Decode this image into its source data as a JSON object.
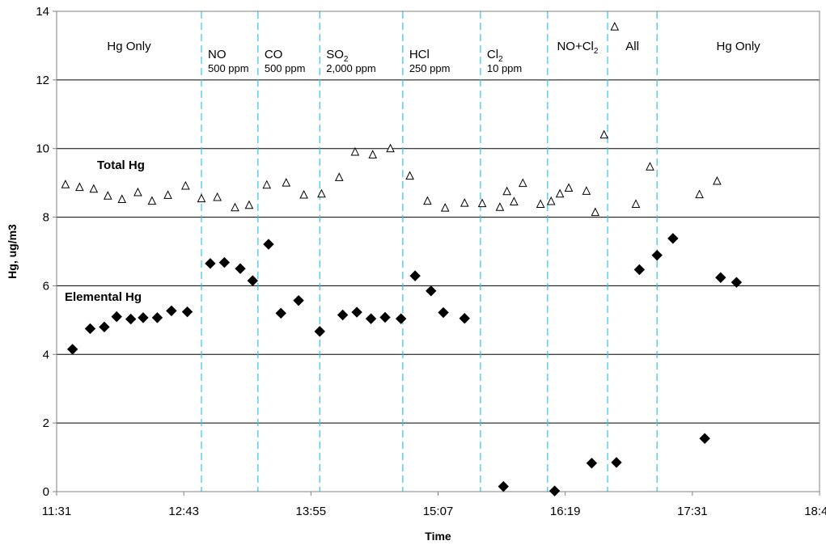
{
  "chart_data": {
    "type": "scatter",
    "xlabel": "Time",
    "ylabel": "Hg, ug/m3",
    "ylim": [
      0,
      14
    ],
    "y_ticks": [
      0,
      2,
      4,
      6,
      8,
      10,
      12,
      14
    ],
    "xlim": [
      "11:31",
      "18:43"
    ],
    "x_ticks": [
      "11:31",
      "12:43",
      "13:55",
      "15:07",
      "16:19",
      "17:31",
      "18:43"
    ],
    "grid": "horizontal",
    "phase_boundaries": [
      "12:53",
      "13:25",
      "14:00",
      "14:47",
      "15:31",
      "16:09",
      "16:43",
      "17:11"
    ],
    "phases": [
      {
        "name": "Hg Only",
        "sub": "",
        "conc": ""
      },
      {
        "name": "NO",
        "sub": "",
        "conc": "500 ppm"
      },
      {
        "name": "CO",
        "sub": "",
        "conc": "500 ppm"
      },
      {
        "name": "SO",
        "sub": "2",
        "conc": "2,000 ppm"
      },
      {
        "name": "HCl",
        "sub": "",
        "conc": "250 ppm"
      },
      {
        "name": "Cl",
        "sub": "2",
        "conc": "10 ppm"
      },
      {
        "name": "NO+Cl",
        "sub": "2",
        "conc": ""
      },
      {
        "name": "All",
        "sub": "",
        "conc": ""
      },
      {
        "name": "Hg Only",
        "sub": "",
        "conc": ""
      }
    ],
    "series": [
      {
        "name": "Total Hg",
        "marker": "open-triangle",
        "points": [
          [
            "11:36",
            8.95
          ],
          [
            "11:44",
            8.87
          ],
          [
            "11:52",
            8.82
          ],
          [
            "12:00",
            8.62
          ],
          [
            "12:08",
            8.52
          ],
          [
            "12:17",
            8.72
          ],
          [
            "12:25",
            8.47
          ],
          [
            "12:34",
            8.64
          ],
          [
            "12:44",
            8.91
          ],
          [
            "12:53",
            8.54
          ],
          [
            "13:02",
            8.58
          ],
          [
            "13:12",
            8.28
          ],
          [
            "13:20",
            8.35
          ],
          [
            "13:30",
            8.94
          ],
          [
            "13:41",
            9.0
          ],
          [
            "13:51",
            8.65
          ],
          [
            "14:01",
            8.68
          ],
          [
            "14:11",
            9.16
          ],
          [
            "14:20",
            9.9
          ],
          [
            "14:30",
            9.82
          ],
          [
            "14:40",
            10.0
          ],
          [
            "14:51",
            9.2
          ],
          [
            "15:01",
            8.47
          ],
          [
            "15:11",
            8.27
          ],
          [
            "15:22",
            8.41
          ],
          [
            "15:32",
            8.4
          ],
          [
            "15:42",
            8.29
          ],
          [
            "15:46",
            8.75
          ],
          [
            "15:50",
            8.45
          ],
          [
            "15:55",
            8.99
          ],
          [
            "16:05",
            8.38
          ],
          [
            "16:11",
            8.46
          ],
          [
            "16:16",
            8.68
          ],
          [
            "16:21",
            8.85
          ],
          [
            "16:31",
            8.76
          ],
          [
            "16:36",
            8.14
          ],
          [
            "16:41",
            10.4
          ],
          [
            "16:47",
            13.55
          ],
          [
            "16:59",
            8.38
          ],
          [
            "17:07",
            9.47
          ],
          [
            "17:35",
            8.66
          ],
          [
            "17:45",
            9.05
          ]
        ]
      },
      {
        "name": "Elemental Hg",
        "marker": "filled-diamond",
        "points": [
          [
            "11:40",
            4.15
          ],
          [
            "11:50",
            4.75
          ],
          [
            "11:58",
            4.8
          ],
          [
            "12:05",
            5.1
          ],
          [
            "12:13",
            5.03
          ],
          [
            "12:20",
            5.07
          ],
          [
            "12:28",
            5.07
          ],
          [
            "12:36",
            5.27
          ],
          [
            "12:45",
            5.24
          ],
          [
            "12:58",
            6.65
          ],
          [
            "13:06",
            6.68
          ],
          [
            "13:15",
            6.5
          ],
          [
            "13:22",
            6.15
          ],
          [
            "13:31",
            7.21
          ],
          [
            "13:38",
            5.2
          ],
          [
            "13:48",
            5.57
          ],
          [
            "14:00",
            4.67
          ],
          [
            "14:13",
            5.15
          ],
          [
            "14:21",
            5.23
          ],
          [
            "14:29",
            5.04
          ],
          [
            "14:37",
            5.08
          ],
          [
            "14:46",
            5.04
          ],
          [
            "14:54",
            6.29
          ],
          [
            "15:03",
            5.85
          ],
          [
            "15:10",
            5.22
          ],
          [
            "15:22",
            5.05
          ],
          [
            "15:44",
            0.15
          ],
          [
            "16:13",
            0.02
          ],
          [
            "16:34",
            0.83
          ],
          [
            "16:48",
            0.85
          ],
          [
            "17:01",
            6.47
          ],
          [
            "17:11",
            6.89
          ],
          [
            "17:20",
            7.38
          ],
          [
            "17:38",
            1.55
          ],
          [
            "17:47",
            6.24
          ],
          [
            "17:56",
            6.1
          ]
        ]
      }
    ]
  }
}
